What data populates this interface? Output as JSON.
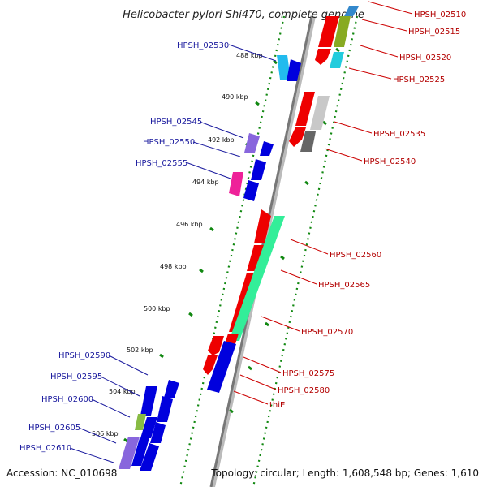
{
  "title": "Helicobacter pylori Shi470, complete genome",
  "footer": {
    "accession": "Accession: NC_010698",
    "topology": "Topology: circular; Length: 1,608,548 bp; Genes: 1,610"
  },
  "colors": {
    "forward": "#ff0000",
    "reverse": "#0000ee",
    "green": "#33ee99",
    "olive": "#88aa22",
    "cyan": "#22bbee",
    "grey": "#aaaaaa",
    "magenta": "#ee2299",
    "purple": "#8866dd",
    "backbone": "#777777",
    "tick_dots": "#118811",
    "label_forward": "#b30000",
    "label_reverse": "#1a1a9e"
  },
  "ticks": [
    "488 kbp",
    "490 kbp",
    "492 kbp",
    "494 kbp",
    "496 kbp",
    "498 kbp",
    "500 kbp",
    "502 kbp",
    "504 kbp",
    "506 kbp"
  ],
  "labels_left": [
    "HPSH_02530",
    "HPSH_02545",
    "HPSH_02550",
    "HPSH_02555",
    "HPSH_02590",
    "HPSH_02595",
    "HPSH_02600",
    "HPSH_02605",
    "HPSH_02610"
  ],
  "labels_right": [
    "HPSH_02510",
    "HPSH_02515",
    "HPSH_02520",
    "HPSH_02525",
    "HPSH_02535",
    "HPSH_02540",
    "HPSH_02560",
    "HPSH_02565",
    "HPSH_02570",
    "HPSH_02575",
    "HPSH_02580",
    "thiE"
  ]
}
